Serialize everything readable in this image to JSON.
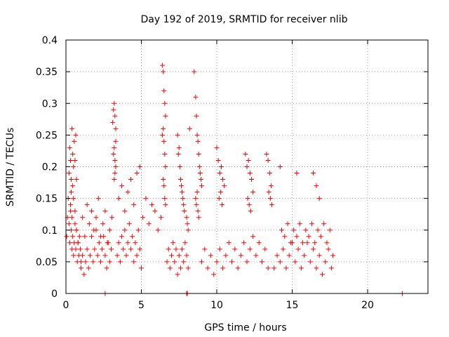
{
  "chart_data": {
    "type": "scatter",
    "title": "Day 192 of 2019, SRMTID for receiver nlib",
    "xlabel": "GPS time / hours",
    "ylabel": "SRMTID / TECUs",
    "xlim": [
      0,
      24
    ],
    "ylim": [
      0,
      0.4
    ],
    "xticks": [
      0,
      5,
      10,
      15,
      20
    ],
    "yticks": [
      0,
      0.05,
      0.1,
      0.15,
      0.2,
      0.25,
      0.3,
      0.35,
      0.4
    ],
    "xtick_labels": [
      "0",
      "5",
      "10",
      "15",
      "20"
    ],
    "ytick_labels": [
      "0",
      "0.05",
      "0.1",
      "0.15",
      "0.2",
      "0.25",
      "0.3",
      "0.35",
      "0.4"
    ],
    "grid": true,
    "marker": "plus",
    "color": "#ff0000",
    "series": [
      {
        "x": [
          0.05,
          0.1,
          0.15,
          0.2,
          0.25,
          0.3,
          0.35,
          0.4,
          0.45,
          0.5,
          0.55,
          0.6,
          0.65,
          0.7,
          0.75,
          0.8,
          0.85,
          0.9,
          0.95,
          1.0,
          0.2,
          0.25,
          0.3,
          0.35,
          0.4,
          0.45,
          0.5,
          0.55,
          0.6,
          0.65,
          0.7,
          0.3,
          0.35,
          0.4,
          0.45,
          0.5,
          0.6,
          0.7,
          0.8,
          1.0,
          1.1,
          1.2,
          1.3,
          1.4,
          1.5,
          1.6,
          1.7,
          1.8,
          1.9,
          2.0,
          2.1,
          2.2,
          2.3,
          2.4,
          2.5,
          2.6,
          2.7,
          2.8,
          2.9,
          3.0,
          1.1,
          1.25,
          1.4,
          1.55,
          1.7,
          1.85,
          2.0,
          2.15,
          2.3,
          2.45,
          2.6,
          2.75,
          2.9,
          3.05,
          3.1,
          3.15,
          3.2,
          3.25,
          3.3,
          3.15,
          3.2,
          3.25,
          3.3,
          3.2,
          3.25,
          3.3,
          3.4,
          3.5,
          3.6,
          3.7,
          3.8,
          3.9,
          4.0,
          4.1,
          4.2,
          4.3,
          4.4,
          4.5,
          4.6,
          4.7,
          4.8,
          4.9,
          5.0,
          3.5,
          3.7,
          3.9,
          4.1,
          4.3,
          4.5,
          4.7,
          4.9,
          5.1,
          5.3,
          5.5,
          5.7,
          5.9,
          6.1,
          6.3,
          6.4,
          6.45,
          6.5,
          6.55,
          6.6,
          6.4,
          6.45,
          6.5,
          6.55,
          6.6,
          6.45,
          6.5,
          6.55,
          6.6,
          6.7,
          6.8,
          6.9,
          7.0,
          7.1,
          7.2,
          7.3,
          7.4,
          7.5,
          7.6,
          7.7,
          7.8,
          7.9,
          8.0,
          8.1,
          8.2,
          7.4,
          7.45,
          7.5,
          7.55,
          7.6,
          7.65,
          7.7,
          7.75,
          7.8,
          7.85,
          8.0,
          8.05,
          8.1,
          8.5,
          8.6,
          8.65,
          8.7,
          8.75,
          8.8,
          8.85,
          8.9,
          8.95,
          9.0,
          8.6,
          8.65,
          8.7,
          8.75,
          8.8,
          9.0,
          9.2,
          9.4,
          9.6,
          9.8,
          10.0,
          10.2,
          10.4,
          10.6,
          10.8,
          11.0,
          11.2,
          11.4,
          11.6,
          11.8,
          12.0,
          12.2,
          12.4,
          12.6,
          12.8,
          13.0,
          13.2,
          13.4,
          10.0,
          10.1,
          10.2,
          10.3,
          10.4,
          10.5,
          10.15,
          10.25,
          10.35,
          11.9,
          12.0,
          12.1,
          12.2,
          12.3,
          12.4,
          12.05,
          12.15,
          12.25,
          13.3,
          13.4,
          13.5,
          13.6,
          13.45,
          13.55,
          13.65,
          13.8,
          14.0,
          14.2,
          14.4,
          14.6,
          14.8,
          15.0,
          15.2,
          15.4,
          15.6,
          15.8,
          16.0,
          16.2,
          16.4,
          16.6,
          16.8,
          17.0,
          17.2,
          17.4,
          17.6,
          17.7,
          14.3,
          14.5,
          14.7,
          14.9,
          15.1,
          15.3,
          15.5,
          15.7,
          15.9,
          16.1,
          16.3,
          16.5,
          16.7,
          16.9,
          17.1,
          17.3,
          17.5,
          14.2,
          15.3,
          16.4,
          16.6,
          16.8,
          2.6,
          8.0,
          8.05,
          22.3
        ],
        "y": [
          0.09,
          0.12,
          0.15,
          0.11,
          0.08,
          0.13,
          0.1,
          0.07,
          0.09,
          0.06,
          0.08,
          0.11,
          0.07,
          0.1,
          0.05,
          0.08,
          0.06,
          0.09,
          0.07,
          0.05,
          0.19,
          0.23,
          0.21,
          0.18,
          0.26,
          0.22,
          0.2,
          0.24,
          0.21,
          0.25,
          0.18,
          0.14,
          0.16,
          0.12,
          0.17,
          0.15,
          0.13,
          0.1,
          0.08,
          0.04,
          0.06,
          0.03,
          0.05,
          0.07,
          0.04,
          0.06,
          0.09,
          0.05,
          0.07,
          0.1,
          0.06,
          0.08,
          0.05,
          0.07,
          0.09,
          0.06,
          0.04,
          0.08,
          0.05,
          0.07,
          0.12,
          0.09,
          0.14,
          0.11,
          0.13,
          0.1,
          0.12,
          0.15,
          0.09,
          0.11,
          0.13,
          0.08,
          0.1,
          0.12,
          0.27,
          0.29,
          0.3,
          0.28,
          0.26,
          0.22,
          0.23,
          0.21,
          0.24,
          0.18,
          0.19,
          0.2,
          0.06,
          0.08,
          0.05,
          0.09,
          0.07,
          0.1,
          0.06,
          0.08,
          0.11,
          0.07,
          0.09,
          0.05,
          0.08,
          0.06,
          0.1,
          0.07,
          0.04,
          0.15,
          0.17,
          0.13,
          0.16,
          0.18,
          0.14,
          0.19,
          0.2,
          0.12,
          0.15,
          0.11,
          0.14,
          0.13,
          0.1,
          0.12,
          0.36,
          0.35,
          0.32,
          0.3,
          0.28,
          0.25,
          0.26,
          0.24,
          0.22,
          0.2,
          0.18,
          0.17,
          0.15,
          0.14,
          0.05,
          0.07,
          0.04,
          0.06,
          0.08,
          0.05,
          0.07,
          0.03,
          0.06,
          0.04,
          0.07,
          0.05,
          0.08,
          0.06,
          0.04,
          0.26,
          0.25,
          0.22,
          0.23,
          0.2,
          0.18,
          0.17,
          0.16,
          0.15,
          0.14,
          0.13,
          0.12,
          0.11,
          0.1,
          0.35,
          0.31,
          0.28,
          0.25,
          0.24,
          0.22,
          0.2,
          0.19,
          0.18,
          0.17,
          0.15,
          0.14,
          0.16,
          0.13,
          0.12,
          0.05,
          0.07,
          0.04,
          0.06,
          0.03,
          0.05,
          0.07,
          0.04,
          0.06,
          0.08,
          0.05,
          0.07,
          0.04,
          0.06,
          0.08,
          0.05,
          0.07,
          0.09,
          0.06,
          0.08,
          0.05,
          0.07,
          0.04,
          0.23,
          0.21,
          0.19,
          0.2,
          0.18,
          0.17,
          0.15,
          0.16,
          0.14,
          0.22,
          0.2,
          0.21,
          0.19,
          0.18,
          0.16,
          0.15,
          0.14,
          0.13,
          0.22,
          0.21,
          0.19,
          0.17,
          0.16,
          0.15,
          0.14,
          0.04,
          0.06,
          0.05,
          0.07,
          0.04,
          0.06,
          0.08,
          0.05,
          0.07,
          0.04,
          0.06,
          0.08,
          0.05,
          0.07,
          0.04,
          0.06,
          0.03,
          0.05,
          0.07,
          0.04,
          0.06,
          0.1,
          0.09,
          0.11,
          0.08,
          0.1,
          0.09,
          0.11,
          0.08,
          0.1,
          0.09,
          0.11,
          0.08,
          0.1,
          0.09,
          0.11,
          0.08,
          0.1,
          0.2,
          0.19,
          0.19,
          0.17,
          0.15,
          0.0,
          0.0,
          0.0,
          0.0
        ]
      }
    ]
  }
}
